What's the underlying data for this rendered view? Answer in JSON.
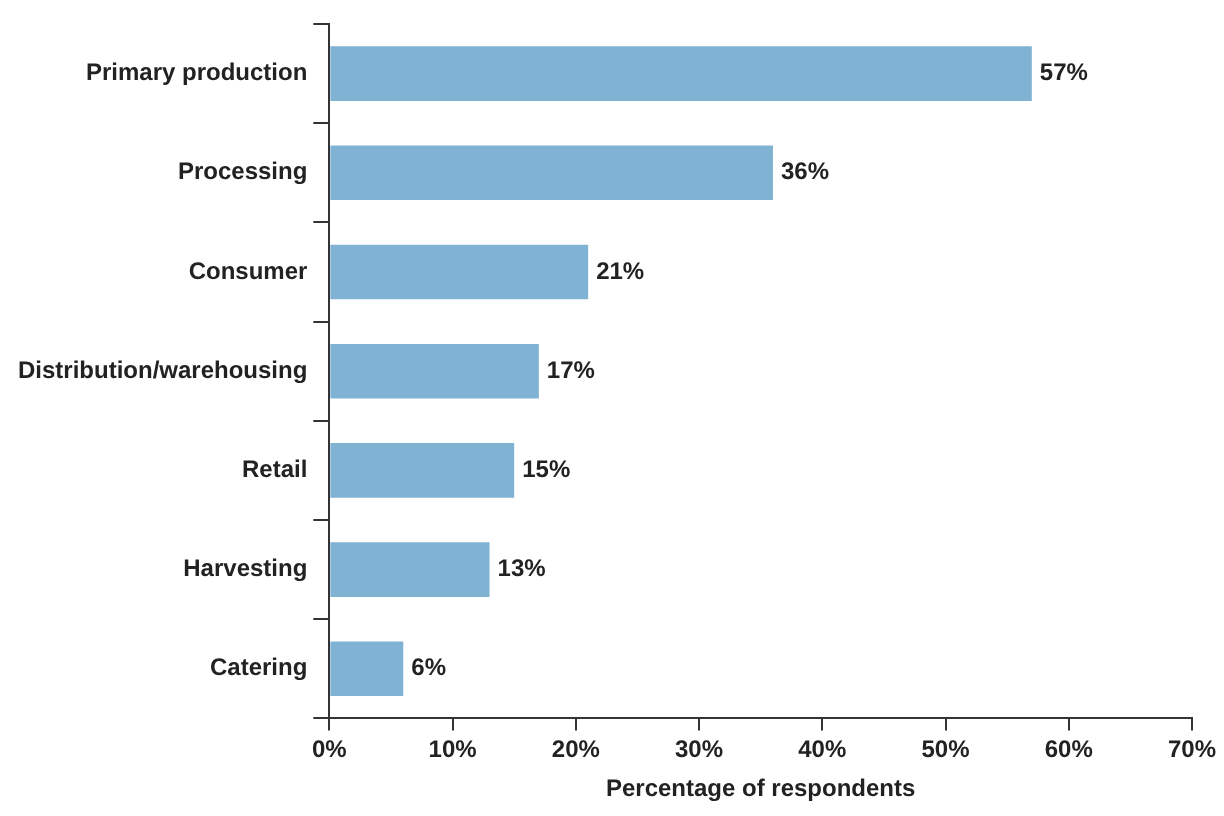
{
  "chart_data": {
    "type": "bar",
    "orientation": "horizontal",
    "xlabel": "Percentage of respondents",
    "categories": [
      "Primary production",
      "Processing",
      "Consumer",
      "Distribution/warehousing",
      "Retail",
      "Harvesting",
      "Catering"
    ],
    "values": [
      57,
      36,
      21,
      17,
      15,
      13,
      6
    ],
    "value_labels": [
      "57%",
      "36%",
      "21%",
      "17%",
      "15%",
      "13%",
      "6%"
    ],
    "color": "#7fb2d3",
    "xlim": [
      0,
      70
    ],
    "xticks": [
      {
        "value": 0,
        "label": "0%"
      },
      {
        "value": 10,
        "label": "10%"
      },
      {
        "value": 20,
        "label": "20%"
      },
      {
        "value": 30,
        "label": "30%"
      },
      {
        "value": 40,
        "label": "40%"
      },
      {
        "value": 50,
        "label": "50%"
      },
      {
        "value": 60,
        "label": "60%"
      },
      {
        "value": 70,
        "label": "70%"
      }
    ],
    "grid": false,
    "legend": false
  }
}
